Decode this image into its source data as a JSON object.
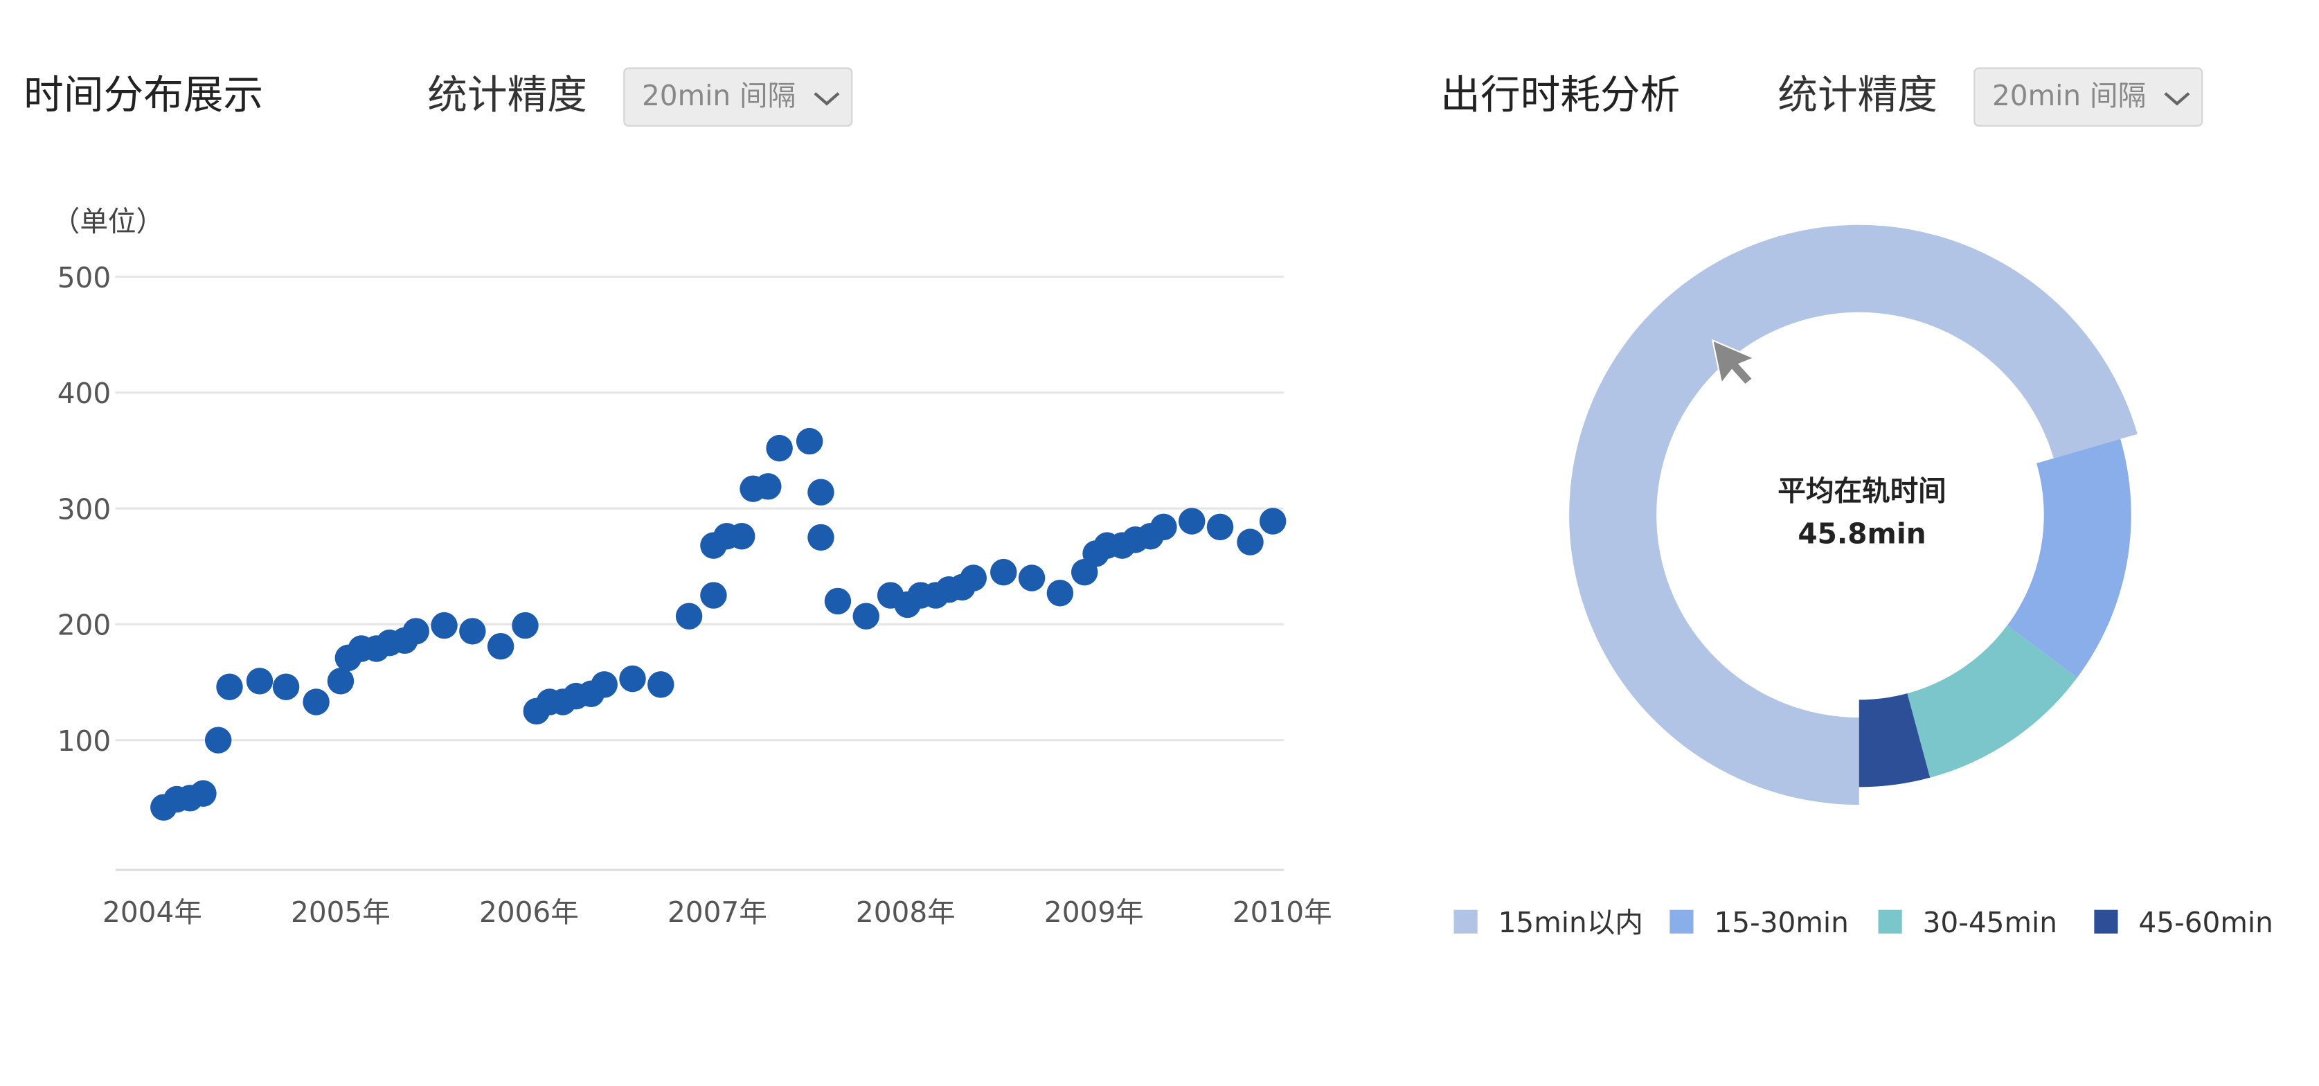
{
  "chart_data": [
    {
      "type": "scatter",
      "title": "时间分布展示",
      "control_label": "统计精度",
      "control_value": "20min 间隔",
      "y_label": "（单位）",
      "color": "#1b5cae",
      "grid": true,
      "xlim": [
        2004,
        2010
      ],
      "xticks": [
        {
          "value": 2004,
          "label": "2004年"
        },
        {
          "value": 2005,
          "label": "2005年"
        },
        {
          "value": 2006,
          "label": "2006年"
        },
        {
          "value": 2007,
          "label": "2007年"
        },
        {
          "value": 2008,
          "label": "2008年"
        },
        {
          "value": 2009,
          "label": "2009年"
        },
        {
          "value": 2010,
          "label": "2010年"
        }
      ],
      "ylim": [
        -12,
        500
      ],
      "yticks": [
        100,
        200,
        300,
        400,
        500
      ],
      "x": [
        2004.06,
        2004.13,
        2004.2,
        2004.27,
        2004.35,
        2004.41,
        2004.57,
        2004.71,
        2004.87,
        2005.0,
        2005.04,
        2005.11,
        2005.19,
        2005.26,
        2005.34,
        2005.4,
        2005.55,
        2005.7,
        2005.85,
        2005.98,
        2006.04,
        2006.11,
        2006.18,
        2006.25,
        2006.33,
        2006.4,
        2006.55,
        2006.7,
        2006.85,
        2006.98,
        2006.98,
        2007.05,
        2007.13,
        2007.19,
        2007.27,
        2007.33,
        2007.49,
        2007.55,
        2007.55,
        2007.64,
        2007.79,
        2007.92,
        2008.01,
        2008.08,
        2008.16,
        2008.23,
        2008.3,
        2008.36,
        2008.52,
        2008.67,
        2008.82,
        2008.95,
        2009.01,
        2009.07,
        2009.15,
        2009.22,
        2009.3,
        2009.37,
        2009.52,
        2009.67,
        2009.83,
        2009.95
      ],
      "values": [
        42,
        49,
        50,
        54,
        100,
        146,
        151,
        146,
        133,
        151,
        171,
        179,
        179,
        184,
        186,
        194,
        199,
        194,
        181,
        199,
        125,
        133,
        133,
        138,
        140,
        148,
        153,
        148,
        207,
        225,
        268,
        276,
        276,
        317,
        319,
        352,
        358,
        314,
        275,
        220,
        207,
        225,
        217,
        225,
        225,
        230,
        232,
        240,
        245,
        240,
        227,
        245,
        261,
        268,
        268,
        273,
        276,
        284,
        289,
        284,
        271,
        289
      ]
    },
    {
      "type": "pie",
      "title": "出行时耗分析",
      "control_label": "统计精度",
      "control_value": "20min 间隔",
      "center_label": "平均在轨时间",
      "center_value": "45.8min",
      "legend": "bottom",
      "categories": [
        "15min以内",
        "15-30min",
        "30-45min",
        "45-60min"
      ],
      "values": [
        70.5,
        14.7,
        10.6,
        4.2
      ],
      "colors": [
        "#b1c4e6",
        "#8aaeea",
        "#7ac6cb",
        "#2c4f97"
      ]
    }
  ]
}
